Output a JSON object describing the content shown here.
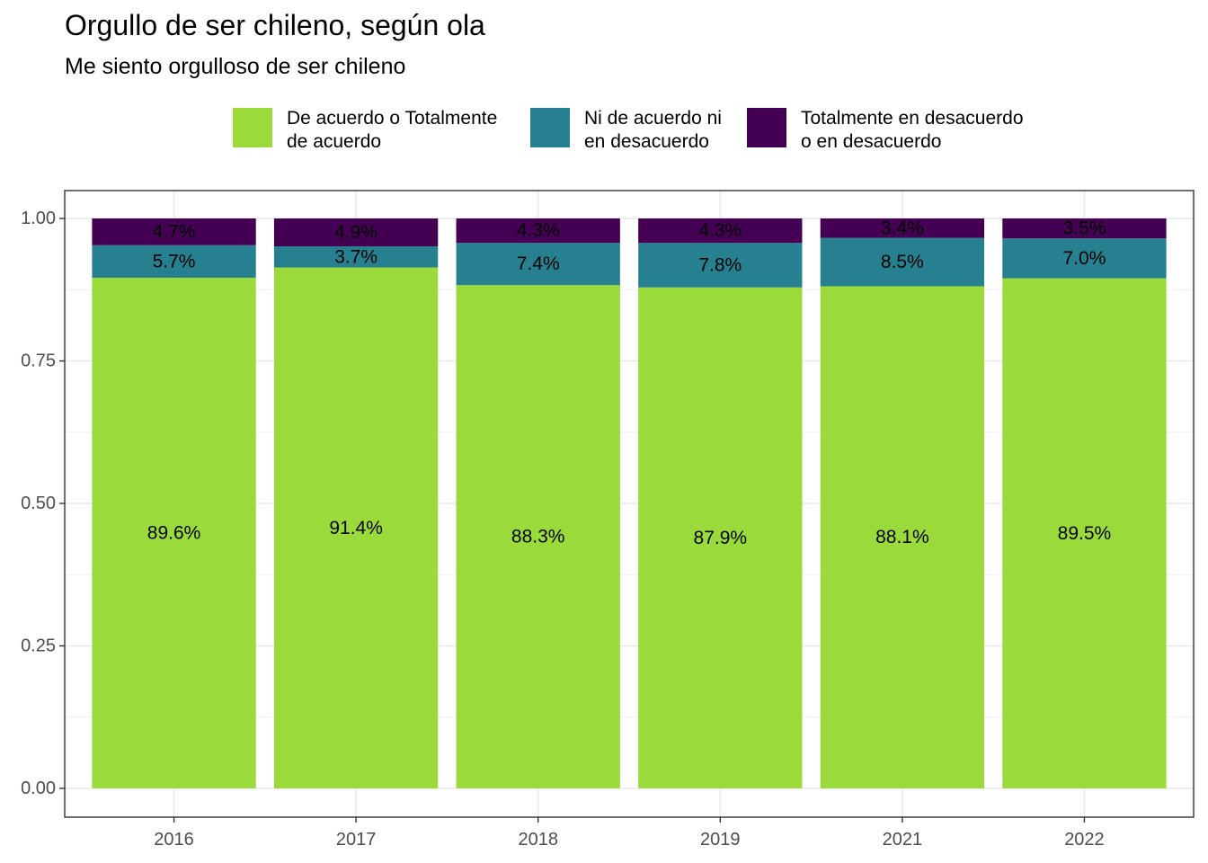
{
  "title": "Orgullo de ser chileno, según ola",
  "subtitle": "Me siento orgulloso de ser chileno",
  "legend": [
    {
      "label": "De acuerdo o Totalmente\nde acuerdo",
      "color": "#9ADA3B"
    },
    {
      "label": "Ni de acuerdo ni\nen desacuerdo",
      "color": "#26808F"
    },
    {
      "label": "Totalmente en desacuerdo\no en desacuerdo",
      "color": "#440154"
    }
  ],
  "chart_data": {
    "type": "bar",
    "stacked": true,
    "categories": [
      "2016",
      "2017",
      "2018",
      "2019",
      "2021",
      "2022"
    ],
    "series": [
      {
        "name": "De acuerdo o Totalmente de acuerdo",
        "color": "#9ADA3B",
        "values": [
          0.896,
          0.914,
          0.883,
          0.879,
          0.881,
          0.895
        ],
        "labels": [
          "89.6%",
          "91.4%",
          "88.3%",
          "87.9%",
          "88.1%",
          "89.5%"
        ]
      },
      {
        "name": "Ni de acuerdo ni en desacuerdo",
        "color": "#26808F",
        "values": [
          0.057,
          0.037,
          0.074,
          0.078,
          0.085,
          0.07
        ],
        "labels": [
          "5.7%",
          "3.7%",
          "7.4%",
          "7.8%",
          "8.5%",
          "7.0%"
        ]
      },
      {
        "name": "Totalmente en desacuerdo o en desacuerdo",
        "color": "#440154",
        "values": [
          0.047,
          0.049,
          0.043,
          0.043,
          0.034,
          0.035
        ],
        "labels": [
          "4.7%",
          "4.9%",
          "4.3%",
          "4.3%",
          "3.4%",
          "3.5%"
        ]
      }
    ],
    "yticks": [
      "0.00",
      "0.25",
      "0.50",
      "0.75",
      "1.00"
    ],
    "ylim": [
      0,
      1
    ],
    "xlabel": "",
    "ylabel": "",
    "grid": true,
    "legend_position": "top"
  }
}
